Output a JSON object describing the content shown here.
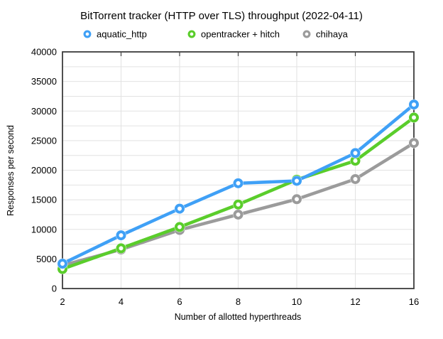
{
  "chart_data": {
    "type": "line",
    "title": "BitTorrent tracker (HTTP over TLS) throughput (2022-04-11)",
    "xlabel": "Number of allotted hyperthreads",
    "ylabel": "Responses per second",
    "categories": [
      2,
      4,
      6,
      8,
      10,
      12,
      16
    ],
    "series": [
      {
        "name": "aquatic_http",
        "color": "#3FA0F6",
        "values": [
          4200,
          9000,
          13500,
          17800,
          18200,
          22900,
          31100
        ]
      },
      {
        "name": "opentracker + hitch",
        "color": "#5ACD2B",
        "values": [
          3300,
          6800,
          10400,
          14200,
          18400,
          21600,
          28900
        ]
      },
      {
        "name": "chihaya",
        "color": "#9B9B9B",
        "values": [
          3900,
          6600,
          9900,
          12500,
          15100,
          18500,
          24600
        ]
      }
    ],
    "ylim": [
      0,
      40000
    ],
    "y_ticks": [
      0,
      5000,
      10000,
      15000,
      20000,
      25000,
      30000,
      35000,
      40000
    ],
    "y_minor_step": 2500,
    "grid": true,
    "legend_position": "top",
    "marker": "open-circle",
    "colors": {
      "grid": "#e2e2e2",
      "frame": "#3c3c3c",
      "text": "#000000",
      "background": "#ffffff"
    }
  }
}
